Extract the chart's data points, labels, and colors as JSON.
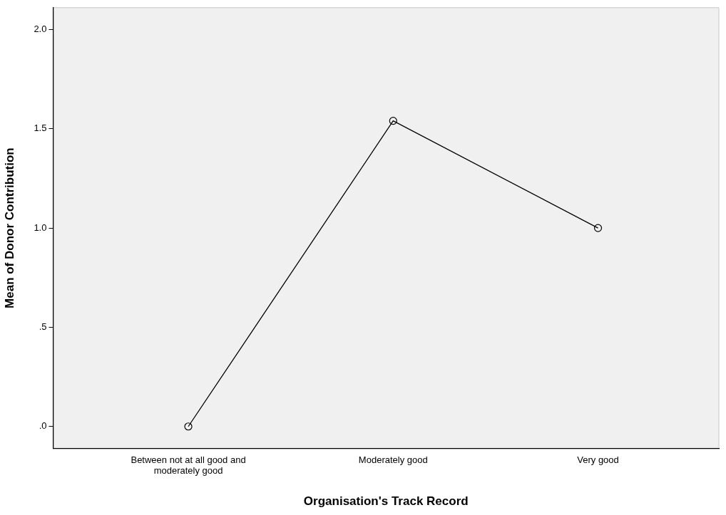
{
  "chart_data": {
    "type": "line",
    "xlabel": "Organisation's Track Record",
    "ylabel": "Mean of Donor Contribution",
    "categories": [
      "Between not at all good and moderately good",
      "Moderately good",
      "Very good"
    ],
    "series": [
      {
        "color": "#000000",
        "values": [
          0,
          1.54,
          1.0
        ]
      }
    ],
    "ylim": [
      -0.11,
      2.11
    ],
    "yticks": [
      {
        "value": 0,
        "label": ".0"
      },
      {
        "value": 0.5,
        "label": ".5"
      },
      {
        "value": 1,
        "label": "1.0"
      },
      {
        "value": 1.5,
        "label": "1.5"
      },
      {
        "value": 2,
        "label": "2.0"
      }
    ],
    "grid": false,
    "legend": false,
    "marker": "circle",
    "line_style": "solid"
  }
}
